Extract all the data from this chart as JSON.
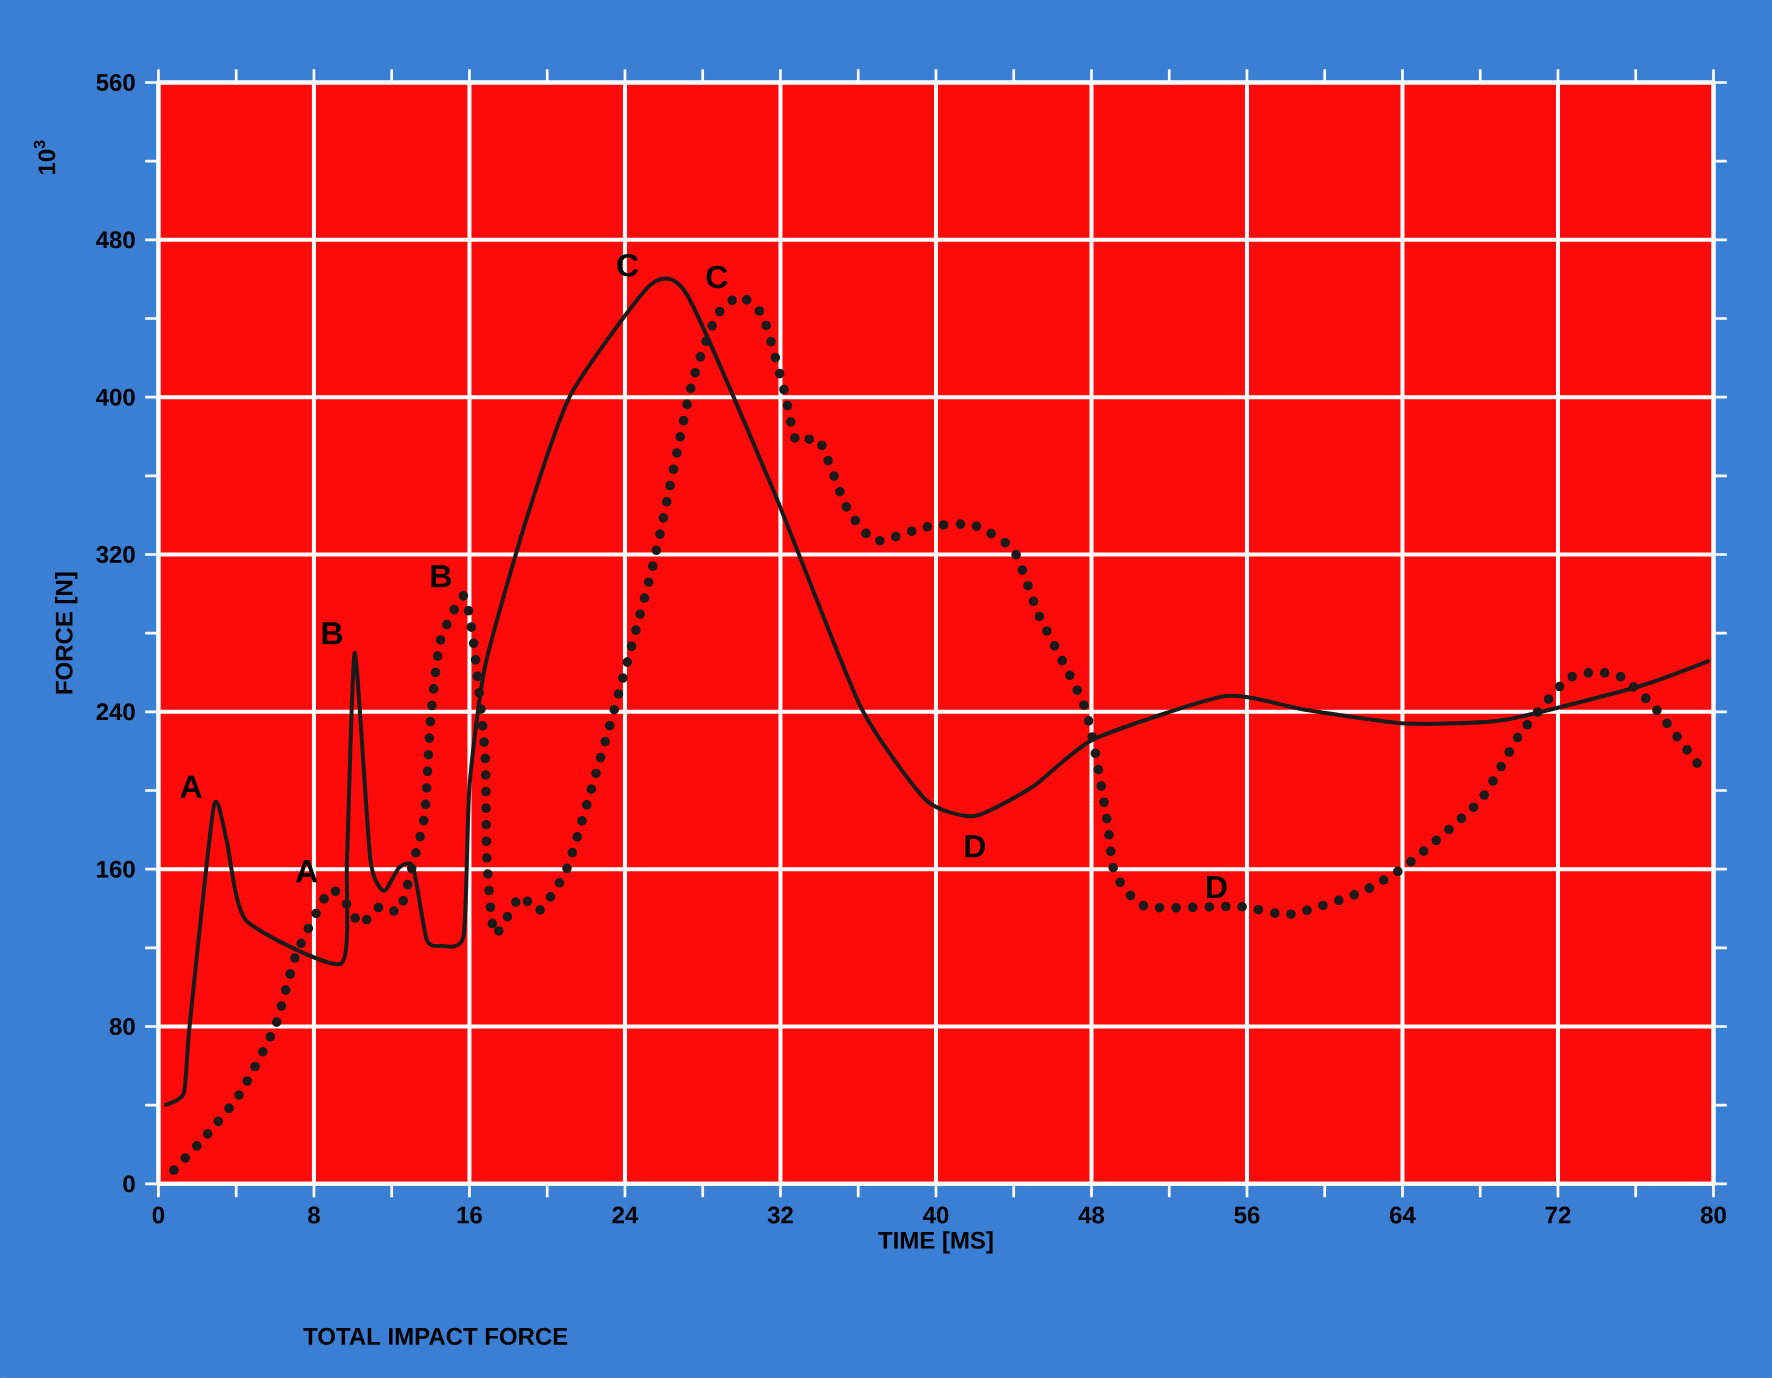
{
  "chart_data": {
    "type": "line",
    "title": "TOTAL IMPACT FORCE",
    "xlabel": "TIME [MS]",
    "ylabel": "FORCE [N]",
    "xlim": [
      0,
      80
    ],
    "ylim": [
      0,
      560
    ],
    "xticks": [
      0,
      8,
      16,
      24,
      32,
      40,
      48,
      56,
      64,
      72,
      80
    ],
    "yticks": [
      0,
      80,
      160,
      240,
      320,
      400,
      480,
      560
    ],
    "grid": true,
    "series": [
      {
        "color": "#1a1a1a",
        "line_style": "solid",
        "x": [
          0.3,
          1.3,
          1.6,
          2.85,
          3.5,
          4.5,
          9.4,
          9.7,
          10.1,
          10.9,
          11.6,
          12.4,
          13.1,
          13.8,
          14.5,
          15.7,
          16.0,
          16.8,
          18.9,
          21.2,
          25.3,
          27.2,
          31.7,
          36.1,
          39.5,
          42.0,
          45.0,
          48.1,
          54.9,
          59.0,
          64.2,
          69.3,
          76.2,
          79.8
        ],
        "values": [
          40,
          46,
          80,
          192,
          175,
          134,
          112,
          165,
          270,
          165,
          149,
          161,
          161,
          124,
          121,
          126,
          202,
          263,
          337,
          401,
          457,
          452,
          351,
          243,
          195,
          187,
          202,
          226,
          248,
          241,
          234,
          236,
          253,
          266
        ]
      },
      {
        "color": "#1a1a1a",
        "line_style": "dotted",
        "x": [
          0.8,
          2.5,
          4.2,
          6.0,
          7.1,
          8.8,
          9.7,
          10.4,
          11.4,
          12.4,
          13.1,
          13.7,
          14.0,
          14.5,
          15.7,
          16.2,
          16.8,
          16.9,
          17.3,
          18.6,
          19.6,
          21.0,
          22.4,
          23.5,
          25.5,
          27.4,
          28.7,
          29.9,
          31.1,
          32.2,
          32.8,
          34.0,
          35.4,
          36.9,
          39.5,
          41.9,
          44.0,
          45.3,
          47.7,
          48.8,
          49.2,
          50.8,
          55.6,
          58.2,
          61.8,
          64.2,
          68.0,
          70.0,
          72.4,
          73.8,
          75.2,
          76.9,
          79.3
        ],
        "values": [
          7,
          25,
          46,
          80,
          117,
          149,
          142,
          132,
          141,
          139,
          163,
          188,
          236,
          276,
          299,
          276,
          219,
          165,
          127,
          146,
          139,
          160,
          205,
          243,
          317,
          405,
          441,
          451,
          441,
          403,
          378,
          378,
          344,
          327,
          334,
          335,
          322,
          289,
          241,
          185,
          158,
          141,
          141,
          137,
          148,
          162,
          195,
          228,
          256,
          260,
          258,
          243,
          212
        ]
      }
    ],
    "annotations": [
      "10$^{3}$",
      {
        "text": "A",
        "x": 2.85,
        "y": 192
      },
      {
        "text": "A",
        "x": 8.8,
        "y": 149
      },
      {
        "text": "B",
        "x": 10.1,
        "y": 270
      },
      {
        "text": "B",
        "x": 15.7,
        "y": 299
      },
      {
        "text": "C",
        "x": 25.3,
        "y": 457
      },
      {
        "text": "C",
        "x": 29.9,
        "y": 451
      },
      {
        "text": "D",
        "x": 42.0,
        "y": 187
      },
      {
        "text": "D",
        "x": 55.6,
        "y": 141
      }
    ]
  }
}
